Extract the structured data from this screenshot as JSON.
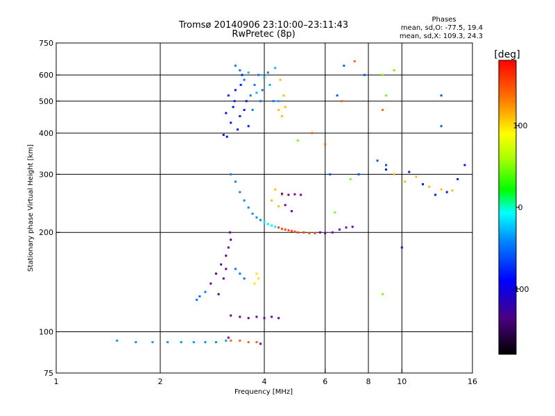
{
  "chart_data": {
    "type": "scatter",
    "title": "Tromsø 20140906 23:10:00–23:11:43",
    "subtitle": "RwPretec (8p)",
    "info": {
      "title": "Phases",
      "line1": "mean, sd,O: -77.5, 19.4",
      "line2": "mean, sd,X: 109.3, 24.3"
    },
    "xlabel": "Frequency [MHz]",
    "ylabel": "Stationary phase Virtual Height [km]",
    "x_scale": "log",
    "y_scale": "log",
    "xlim": [
      1,
      16
    ],
    "ylim": [
      75,
      750
    ],
    "x_ticks": [
      1,
      2,
      4,
      6,
      8,
      10,
      16
    ],
    "y_ticks": [
      75,
      100,
      200,
      300,
      400,
      500,
      600,
      750
    ],
    "x_grid": [
      2,
      4,
      6,
      8,
      10
    ],
    "y_grid": [
      100,
      200,
      300,
      400,
      500,
      600
    ],
    "colorbar": {
      "label": "[deg]",
      "min": -180,
      "max": 180,
      "ticks": [
        100,
        0,
        -100
      ]
    },
    "series": [
      {
        "value_deg": -130,
        "points": [
          [
            3.05,
            395
          ],
          [
            3.1,
            460
          ],
          [
            3.15,
            520
          ],
          [
            3.2,
            430
          ],
          [
            3.25,
            480
          ],
          [
            3.3,
            540
          ],
          [
            3.35,
            410
          ],
          [
            3.4,
            450
          ],
          [
            3.45,
            600
          ],
          [
            3.5,
            470
          ],
          [
            3.55,
            500
          ],
          [
            3.6,
            420
          ],
          [
            3.12,
            390
          ],
          [
            3.28,
            500
          ],
          [
            3.42,
            560
          ]
        ]
      },
      {
        "value_deg": -100,
        "points": [
          [
            3.3,
            640
          ],
          [
            3.4,
            620
          ],
          [
            3.5,
            580
          ],
          [
            3.65,
            520
          ],
          [
            3.75,
            560
          ],
          [
            3.85,
            600
          ],
          [
            3.95,
            540
          ],
          [
            4.1,
            610
          ],
          [
            4.25,
            500
          ],
          [
            3.7,
            470
          ],
          [
            3.9,
            500
          ]
        ]
      },
      {
        "value_deg": -80,
        "points": [
          [
            4.3,
            630
          ],
          [
            4.0,
            590
          ],
          [
            3.8,
            530
          ],
          [
            4.15,
            560
          ],
          [
            3.6,
            610
          ],
          [
            4.4,
            500
          ]
        ]
      },
      {
        "value_deg": 120,
        "points": [
          [
            4.45,
            580
          ],
          [
            4.55,
            520
          ],
          [
            4.6,
            480
          ],
          [
            4.5,
            450
          ],
          [
            4.4,
            470
          ]
        ]
      },
      {
        "value_deg": -95,
        "points": [
          [
            3.2,
            300
          ],
          [
            3.3,
            285
          ],
          [
            3.4,
            265
          ],
          [
            3.5,
            250
          ],
          [
            3.6,
            238
          ],
          [
            3.7,
            228
          ],
          [
            3.8,
            222
          ],
          [
            3.9,
            218
          ]
        ]
      },
      {
        "value_deg": -60,
        "points": [
          [
            4.0,
            215
          ],
          [
            4.1,
            212
          ],
          [
            4.2,
            210
          ],
          [
            4.3,
            208
          ]
        ]
      },
      {
        "value_deg": 160,
        "points": [
          [
            4.4,
            207
          ],
          [
            4.5,
            205
          ],
          [
            4.6,
            204
          ],
          [
            4.7,
            203
          ],
          [
            4.8,
            202
          ],
          [
            4.9,
            201
          ],
          [
            5.0,
            200
          ],
          [
            5.2,
            200
          ],
          [
            5.4,
            199
          ],
          [
            5.6,
            199
          ]
        ]
      },
      {
        "value_deg": 120,
        "points": [
          [
            4.3,
            270
          ],
          [
            4.5,
            260
          ],
          [
            4.2,
            250
          ],
          [
            4.4,
            240
          ]
        ]
      },
      {
        "value_deg": -140,
        "points": [
          [
            5.8,
            200
          ],
          [
            6.0,
            199
          ],
          [
            6.3,
            200
          ],
          [
            6.6,
            204
          ],
          [
            6.9,
            207
          ],
          [
            7.2,
            208
          ],
          [
            4.5,
            262
          ],
          [
            4.7,
            260
          ],
          [
            4.9,
            261
          ],
          [
            5.1,
            260
          ],
          [
            4.6,
            242
          ],
          [
            4.8,
            232
          ]
        ]
      },
      {
        "value_deg": -150,
        "points": [
          [
            2.8,
            140
          ],
          [
            2.9,
            150
          ],
          [
            3.0,
            160
          ],
          [
            3.1,
            170
          ],
          [
            3.15,
            180
          ],
          [
            3.2,
            190
          ],
          [
            2.95,
            130
          ],
          [
            3.05,
            145
          ],
          [
            3.1,
            155
          ],
          [
            3.18,
            200
          ]
        ]
      },
      {
        "value_deg": -100,
        "points": [
          [
            3.3,
            155
          ],
          [
            3.4,
            150
          ],
          [
            3.5,
            145
          ],
          [
            2.6,
            128
          ],
          [
            2.7,
            132
          ],
          [
            2.55,
            125
          ]
        ]
      },
      {
        "value_deg": 110,
        "points": [
          [
            3.75,
            140
          ],
          [
            3.85,
            145
          ],
          [
            3.8,
            150
          ]
        ]
      },
      {
        "value_deg": -145,
        "points": [
          [
            3.2,
            112
          ],
          [
            3.4,
            111
          ],
          [
            3.6,
            110
          ],
          [
            3.8,
            111
          ],
          [
            4.0,
            110
          ],
          [
            4.2,
            111
          ],
          [
            4.4,
            110
          ]
        ]
      },
      {
        "value_deg": -90,
        "points": [
          [
            1.5,
            94
          ],
          [
            1.7,
            93
          ],
          [
            1.9,
            93
          ],
          [
            2.1,
            93
          ],
          [
            2.3,
            93
          ],
          [
            2.5,
            93
          ],
          [
            2.7,
            93
          ],
          [
            2.9,
            93
          ],
          [
            3.1,
            94
          ]
        ]
      },
      {
        "value_deg": 150,
        "points": [
          [
            3.2,
            94
          ],
          [
            3.4,
            94
          ],
          [
            3.6,
            93
          ],
          [
            3.8,
            93
          ]
        ]
      },
      {
        "value_deg": -140,
        "points": [
          [
            3.15,
            96
          ],
          [
            3.9,
            92
          ]
        ]
      },
      {
        "value_deg": 120,
        "points": [
          [
            9.5,
            300
          ],
          [
            10.2,
            285
          ],
          [
            11.0,
            295
          ],
          [
            12.0,
            275
          ],
          [
            13.0,
            270
          ],
          [
            14.0,
            268
          ]
        ]
      },
      {
        "value_deg": -130,
        "points": [
          [
            10.5,
            305
          ],
          [
            11.5,
            280
          ],
          [
            12.5,
            260
          ],
          [
            13.5,
            265
          ],
          [
            14.5,
            290
          ],
          [
            15.2,
            320
          ],
          [
            9.0,
            310
          ],
          [
            10.0,
            180
          ]
        ]
      },
      {
        "value_deg": 150,
        "points": [
          [
            7.3,
            660
          ],
          [
            8.8,
            470
          ],
          [
            6.0,
            370
          ],
          [
            5.5,
            400
          ],
          [
            6.7,
            500
          ]
        ]
      },
      {
        "value_deg": -110,
        "points": [
          [
            6.8,
            640
          ],
          [
            6.5,
            520
          ],
          [
            7.5,
            300
          ],
          [
            8.5,
            330
          ],
          [
            6.2,
            300
          ],
          [
            13.0,
            520
          ],
          [
            13.0,
            420
          ],
          [
            7.8,
            600
          ],
          [
            9.0,
            320
          ]
        ]
      },
      {
        "value_deg": 60,
        "points": [
          [
            8.8,
            600
          ],
          [
            9.5,
            620
          ],
          [
            9.0,
            520
          ],
          [
            7.1,
            290
          ],
          [
            6.4,
            230
          ],
          [
            8.8,
            130
          ],
          [
            5.0,
            380
          ]
        ]
      }
    ]
  }
}
